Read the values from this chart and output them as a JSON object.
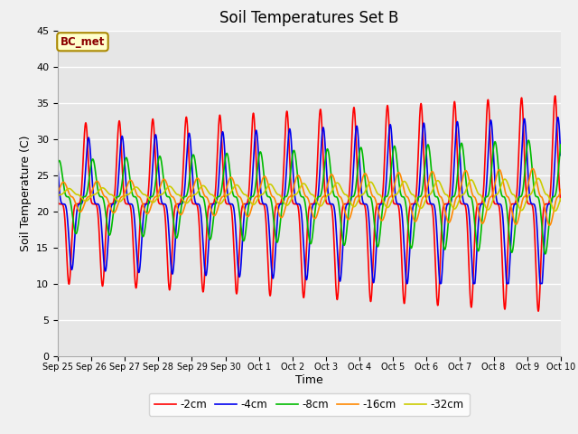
{
  "title": "Soil Temperatures Set B",
  "xlabel": "Time",
  "ylabel": "Soil Temperature (C)",
  "ylim": [
    0,
    45
  ],
  "annotation": "BC_met",
  "legend_labels": [
    "-2cm",
    "-4cm",
    "-8cm",
    "-16cm",
    "-32cm"
  ],
  "line_colors": [
    "#ff0000",
    "#0000ee",
    "#00bb00",
    "#ff8800",
    "#cccc00"
  ],
  "background_color": "#e6e6e6",
  "fig_color": "#f0f0f0",
  "title_fontsize": 12,
  "axis_fontsize": 9,
  "tick_labels": [
    "Sep 25",
    "Sep 26",
    "Sep 27",
    "Sep 28",
    "Sep 29",
    "Sep 30",
    "Oct 1",
    "Oct 2",
    "Oct 3",
    "Oct 4",
    "Oct 5",
    "Oct 6",
    "Oct 7",
    "Oct 8",
    "Oct 9",
    "Oct 10"
  ],
  "yticks": [
    0,
    5,
    10,
    15,
    20,
    25,
    30,
    35,
    40,
    45
  ],
  "num_days": 15,
  "pts_per_day": 240
}
